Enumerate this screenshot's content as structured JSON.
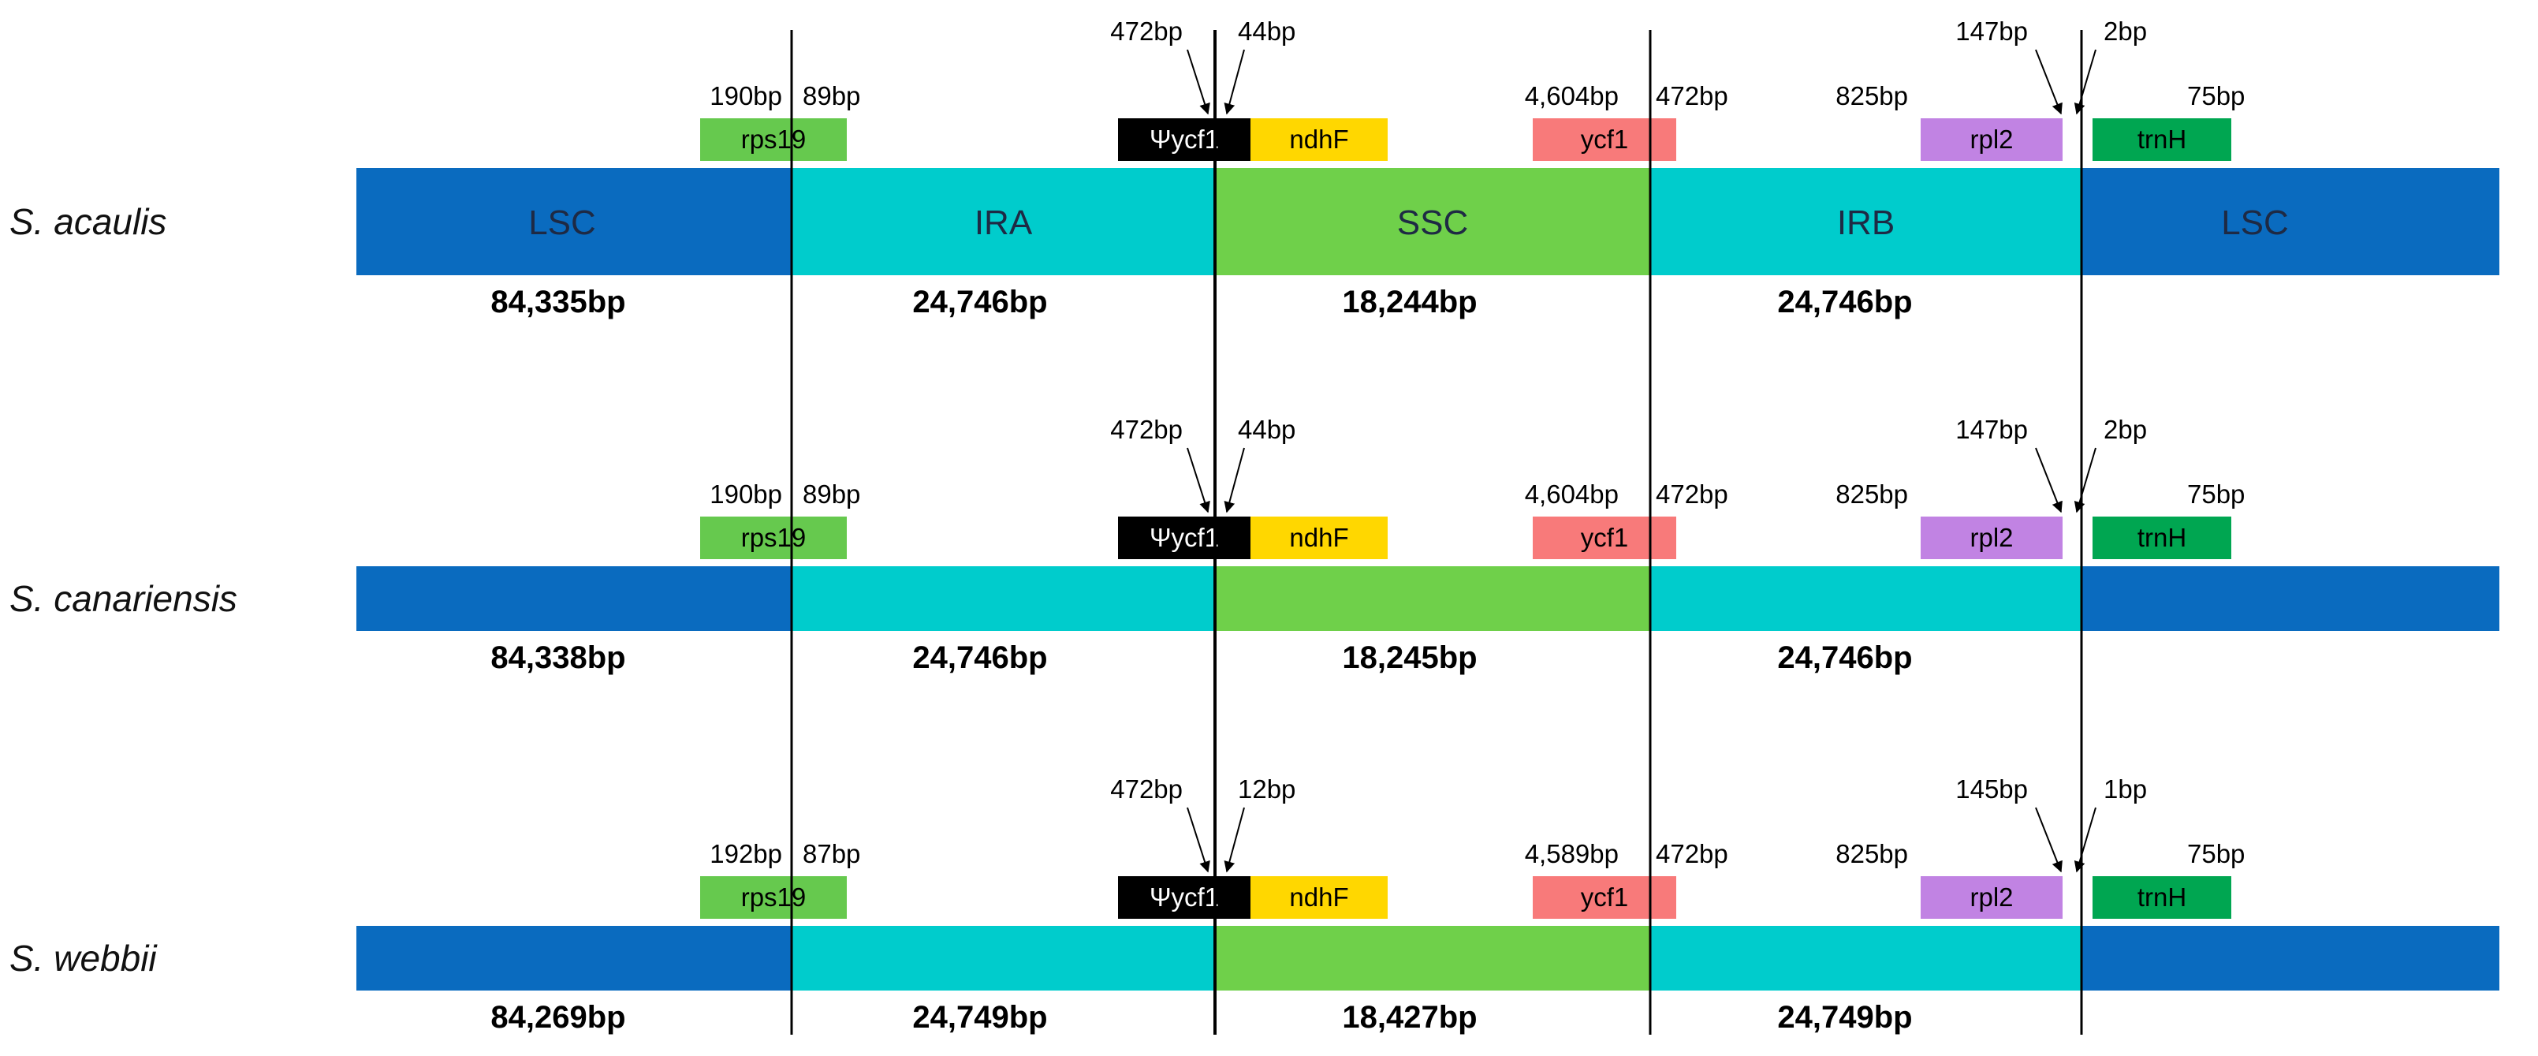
{
  "colors": {
    "LSC": "#0a6bbf",
    "IR": "#00cccc",
    "SSC": "#6fd04a",
    "rps19": "#66c94e",
    "ycf1_pseudo": "#000000",
    "ndhF": "#ffd700",
    "ycf1": "#f87a7a",
    "rpl2": "#c183e3",
    "trnH": "#00a651",
    "boundary_line": "#000000"
  },
  "genes": {
    "rps19": "rps19",
    "ycf1_pseudo": "Ψycf1",
    "ndhF": "ndhF",
    "ycf1": "ycf1",
    "rpl2": "rpl2",
    "trnH": "trnH"
  },
  "region_names": [
    "LSC",
    "IRA",
    "SSC",
    "IRB",
    "LSC"
  ],
  "species": [
    {
      "name": "S. acaulis",
      "show_region_names": true,
      "lengths": [
        "84,335bp",
        "24,746bp",
        "18,244bp",
        "24,746bp"
      ],
      "bp": {
        "rps19_left": "190bp",
        "rps19_right": "89bp",
        "ycf1_pseudo": "472bp",
        "ndhF": "44bp",
        "ycf1_left": "4,604bp",
        "ycf1_right": "472bp",
        "rpl2_left": "825bp",
        "rpl2_right": "147bp",
        "trnH_left": "2bp",
        "trnH_right": "75bp"
      }
    },
    {
      "name": "S. canariensis",
      "show_region_names": false,
      "lengths": [
        "84,338bp",
        "24,746bp",
        "18,245bp",
        "24,746bp"
      ],
      "bp": {
        "rps19_left": "190bp",
        "rps19_right": "89bp",
        "ycf1_pseudo": "472bp",
        "ndhF": "44bp",
        "ycf1_left": "4,604bp",
        "ycf1_right": "472bp",
        "rpl2_left": "825bp",
        "rpl2_right": "147bp",
        "trnH_left": "2bp",
        "trnH_right": "75bp"
      }
    },
    {
      "name": "S. webbii",
      "show_region_names": false,
      "lengths": [
        "84,269bp",
        "24,749bp",
        "18,427bp",
        "24,749bp"
      ],
      "bp": {
        "rps19_left": "192bp",
        "rps19_right": "87bp",
        "ycf1_pseudo": "472bp",
        "ndhF": "12bp",
        "ycf1_left": "4,589bp",
        "ycf1_right": "472bp",
        "rpl2_left": "825bp",
        "rpl2_right": "145bp",
        "trnH_left": "1bp",
        "trnH_right": "75bp"
      }
    }
  ]
}
